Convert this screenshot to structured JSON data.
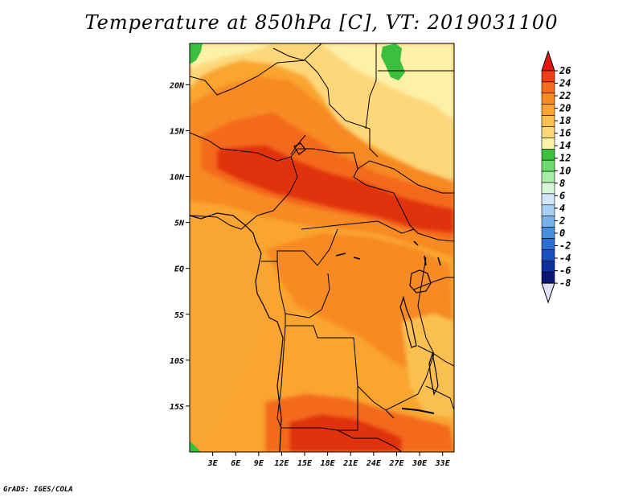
{
  "title": "Temperature at 850hPa [C], VT: 2019031100",
  "credit": "GrADS: IGES/COLA",
  "map": {
    "lon_range": [
      0,
      34.5
    ],
    "lat_range": [
      -20,
      24.5
    ],
    "lon_ticks": [
      "3E",
      "6E",
      "9E",
      "12E",
      "15E",
      "18E",
      "21E",
      "24E",
      "27E",
      "30E",
      "33E"
    ],
    "lat_ticks": [
      "20N",
      "15N",
      "10N",
      "5N",
      "EQ",
      "5S",
      "10S",
      "15S"
    ],
    "field": "temperature at 850hPa",
    "units": "C"
  },
  "colorbar": {
    "levels": [
      "26",
      "24",
      "22",
      "20",
      "18",
      "16",
      "14",
      "12",
      "10",
      "8",
      "6",
      "4",
      "2",
      "0",
      "-2",
      "-4",
      "-6",
      "-8"
    ],
    "colors_top_to_bottom": [
      "#e41a10",
      "#f03c18",
      "#f46a1e",
      "#f78a22",
      "#f9a530",
      "#fac050",
      "#fcd77a",
      "#fdf1a8",
      "#3cbf3c",
      "#6fda6f",
      "#a8eca8",
      "#d8f5d8",
      "#d2e8f8",
      "#a8d0f0",
      "#78b0e8",
      "#4890de",
      "#2b6fd2",
      "#1a4fbf",
      "#0d2f9e",
      "#0a1670",
      "#e0e0f8"
    ]
  }
}
